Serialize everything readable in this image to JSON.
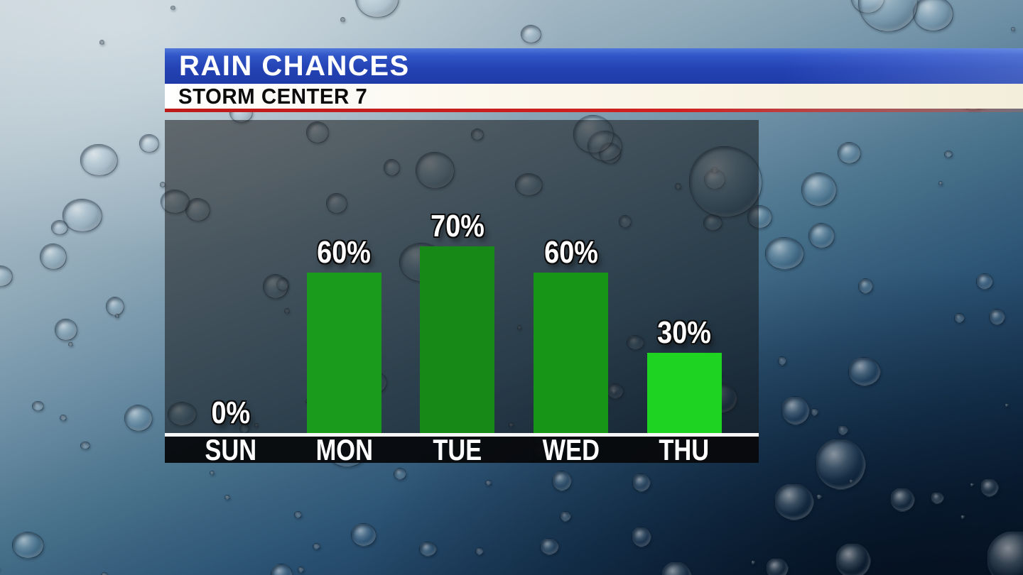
{
  "banner": {
    "title": "RAIN CHANCES",
    "subtitle": "STORM CENTER 7"
  },
  "colors": {
    "banner_blue": "#2443b4",
    "banner_strip": "#f6f2e3",
    "accent_red": "#d12020",
    "panel_overlay": "rgba(22,24,26,0.55)",
    "axis_line": "#f7f7f7",
    "day_strip": "#070809",
    "label_text": "#ffffff"
  },
  "chart_data": {
    "type": "bar",
    "title": "RAIN CHANCES",
    "subtitle": "STORM CENTER 7",
    "categories": [
      "SUN",
      "MON",
      "TUE",
      "WED",
      "THU"
    ],
    "values": [
      0,
      60,
      70,
      60,
      30
    ],
    "value_labels": [
      "0%",
      "60%",
      "70%",
      "60%",
      "30%"
    ],
    "unit": "%",
    "ylim": [
      0,
      100
    ],
    "grid": false,
    "legend": null,
    "bar_colors": [
      "#1b9b1b",
      "#1b9b1b",
      "#168916",
      "#179517",
      "#1ed321"
    ]
  }
}
